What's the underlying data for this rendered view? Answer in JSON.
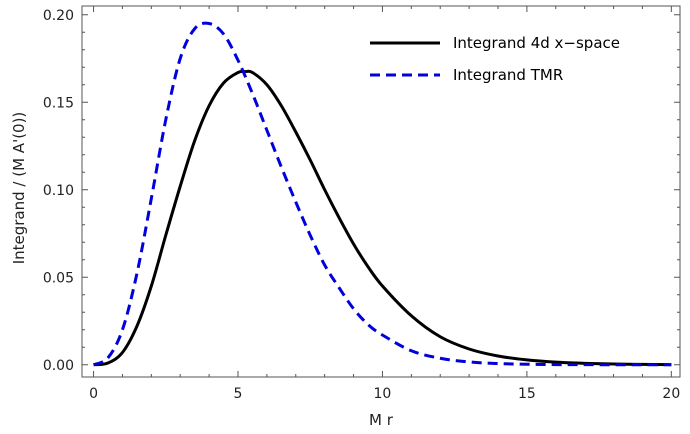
{
  "chart_data": {
    "type": "line",
    "xlabel": "M r",
    "ylabel": "Integrand / (M A'(0))",
    "xlim": [
      -0.4,
      20.3
    ],
    "ylim": [
      -0.007,
      0.205
    ],
    "xticks": [
      0,
      5,
      10,
      15,
      20
    ],
    "xtick_labels": [
      "0",
      "5",
      "10",
      "15",
      "20"
    ],
    "yticks": [
      0.0,
      0.05,
      0.1,
      0.15,
      0.2
    ],
    "ytick_labels": [
      "0.00",
      "0.05",
      "0.10",
      "0.15",
      "0.20"
    ],
    "grid": false,
    "legend_position": "top-right",
    "series": [
      {
        "name": "Integrand 4d x−space",
        "color": "#000000",
        "dash": "solid",
        "x": [
          0,
          0.5,
          1,
          1.5,
          2,
          2.5,
          3,
          3.5,
          4,
          4.5,
          5,
          5.25,
          5.5,
          6,
          6.5,
          7,
          7.5,
          8,
          8.5,
          9,
          9.5,
          10,
          11,
          12,
          13,
          14,
          15,
          16,
          17,
          18,
          19,
          20
        ],
        "y": [
          0.0,
          0.001,
          0.007,
          0.022,
          0.045,
          0.074,
          0.102,
          0.128,
          0.148,
          0.161,
          0.167,
          0.1675,
          0.167,
          0.16,
          0.148,
          0.133,
          0.117,
          0.1,
          0.084,
          0.069,
          0.056,
          0.045,
          0.028,
          0.016,
          0.009,
          0.005,
          0.0028,
          0.0015,
          0.0008,
          0.0004,
          0.0002,
          0.0001
        ]
      },
      {
        "name": "Integrand TMR",
        "color": "#0000dd",
        "dash": "dashed",
        "x": [
          0,
          0.5,
          1,
          1.5,
          2,
          2.5,
          3,
          3.5,
          4,
          4.5,
          5,
          5.5,
          6,
          6.5,
          7,
          7.5,
          8,
          8.5,
          9,
          9.5,
          10,
          11,
          12,
          13,
          14,
          15,
          16,
          17,
          18,
          19,
          20
        ],
        "y": [
          0.0,
          0.004,
          0.02,
          0.052,
          0.095,
          0.14,
          0.175,
          0.192,
          0.195,
          0.189,
          0.174,
          0.155,
          0.134,
          0.113,
          0.093,
          0.074,
          0.057,
          0.044,
          0.032,
          0.023,
          0.017,
          0.008,
          0.0037,
          0.0016,
          0.0007,
          0.0003,
          0.0001,
          5e-05,
          2e-05,
          1e-05,
          0.0
        ]
      }
    ]
  }
}
